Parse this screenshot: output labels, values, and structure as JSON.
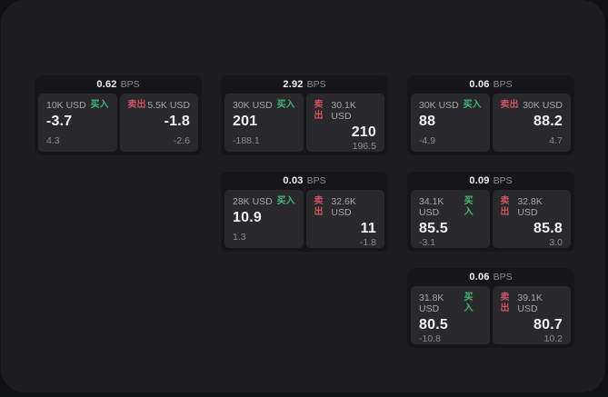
{
  "theme": {
    "outer_bg": "#101113",
    "panel_bg": "#1d1d1f",
    "card_bg": "#161618",
    "subcard_bg": "#29292b",
    "text_primary": "#f2f2f2",
    "text_secondary": "#a7a7a9",
    "text_muted": "#8c8c8e",
    "buy_color": "#41b877",
    "sell_color": "#d15360"
  },
  "labels": {
    "bps_unit": "BPS",
    "buy": "买入",
    "sell": "卖出"
  },
  "cards": [
    {
      "row": 1,
      "col": 1,
      "bps": "0.62",
      "buy": {
        "amount": "10K USD",
        "price": "-3.7",
        "delta": "4.3"
      },
      "sell": {
        "amount": "5.5K USD",
        "price": "-1.8",
        "delta": "-2.6"
      }
    },
    {
      "row": 1,
      "col": 2,
      "bps": "2.92",
      "buy": {
        "amount": "30K USD",
        "price": "201",
        "delta": "-188.1"
      },
      "sell": {
        "amount": "30.1K USD",
        "price": "210",
        "delta": "196.5"
      }
    },
    {
      "row": 1,
      "col": 3,
      "bps": "0.06",
      "buy": {
        "amount": "30K USD",
        "price": "88",
        "delta": "-4.9"
      },
      "sell": {
        "amount": "30K USD",
        "price": "88.2",
        "delta": "4.7"
      }
    },
    {
      "row": 2,
      "col": 2,
      "bps": "0.03",
      "buy": {
        "amount": "28K USD",
        "price": "10.9",
        "delta": "1.3"
      },
      "sell": {
        "amount": "32.6K USD",
        "price": "11",
        "delta": "-1.8"
      }
    },
    {
      "row": 2,
      "col": 3,
      "bps": "0.09",
      "buy": {
        "amount": "34.1K USD",
        "price": "85.5",
        "delta": "-3.1"
      },
      "sell": {
        "amount": "32.8K USD",
        "price": "85.8",
        "delta": "3.0"
      }
    },
    {
      "row": 3,
      "col": 3,
      "bps": "0.06",
      "buy": {
        "amount": "31.8K USD",
        "price": "80.5",
        "delta": "-10.8"
      },
      "sell": {
        "amount": "39.1K USD",
        "price": "80.7",
        "delta": "10.2"
      }
    }
  ]
}
